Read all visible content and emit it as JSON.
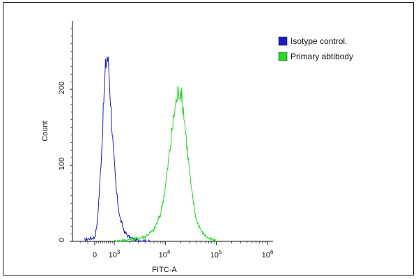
{
  "chart_data": {
    "type": "area",
    "xlabel": "FITC-A",
    "ylabel": "Count",
    "x_scale": "biexponential",
    "x_ticks": [
      {
        "base": "0",
        "exp": ""
      },
      {
        "base": "10",
        "exp": "3"
      },
      {
        "base": "10",
        "exp": "4"
      },
      {
        "base": "10",
        "exp": "5"
      },
      {
        "base": "10",
        "exp": "6"
      }
    ],
    "y_ticks": [
      "0",
      "100",
      "200"
    ],
    "ylim": [
      0,
      290
    ],
    "grid": false,
    "legend_position": "top-right",
    "series": [
      {
        "name": "Isotype control.",
        "color": "#1a1acc",
        "x": [
          -150,
          0,
          120,
          250,
          380,
          480,
          560,
          640,
          720,
          820,
          950,
          1100,
          1300,
          1600,
          2000,
          2600,
          3500,
          5000
        ],
        "y": [
          2,
          5,
          22,
          70,
          135,
          195,
          232,
          245,
          228,
          180,
          120,
          65,
          30,
          12,
          5,
          2,
          1,
          0
        ]
      },
      {
        "name": "Primary abtibody",
        "color": "#22dd22",
        "x": [
          1000,
          2500,
          4000,
          6000,
          8000,
          10000,
          12500,
          15000,
          17500,
          20000,
          23000,
          27000,
          32000,
          40000,
          52000,
          70000,
          100000
        ],
        "y": [
          0,
          3,
          6,
          15,
          35,
          70,
          125,
          170,
          195,
          200,
          170,
          120,
          70,
          30,
          12,
          4,
          0
        ]
      }
    ]
  }
}
